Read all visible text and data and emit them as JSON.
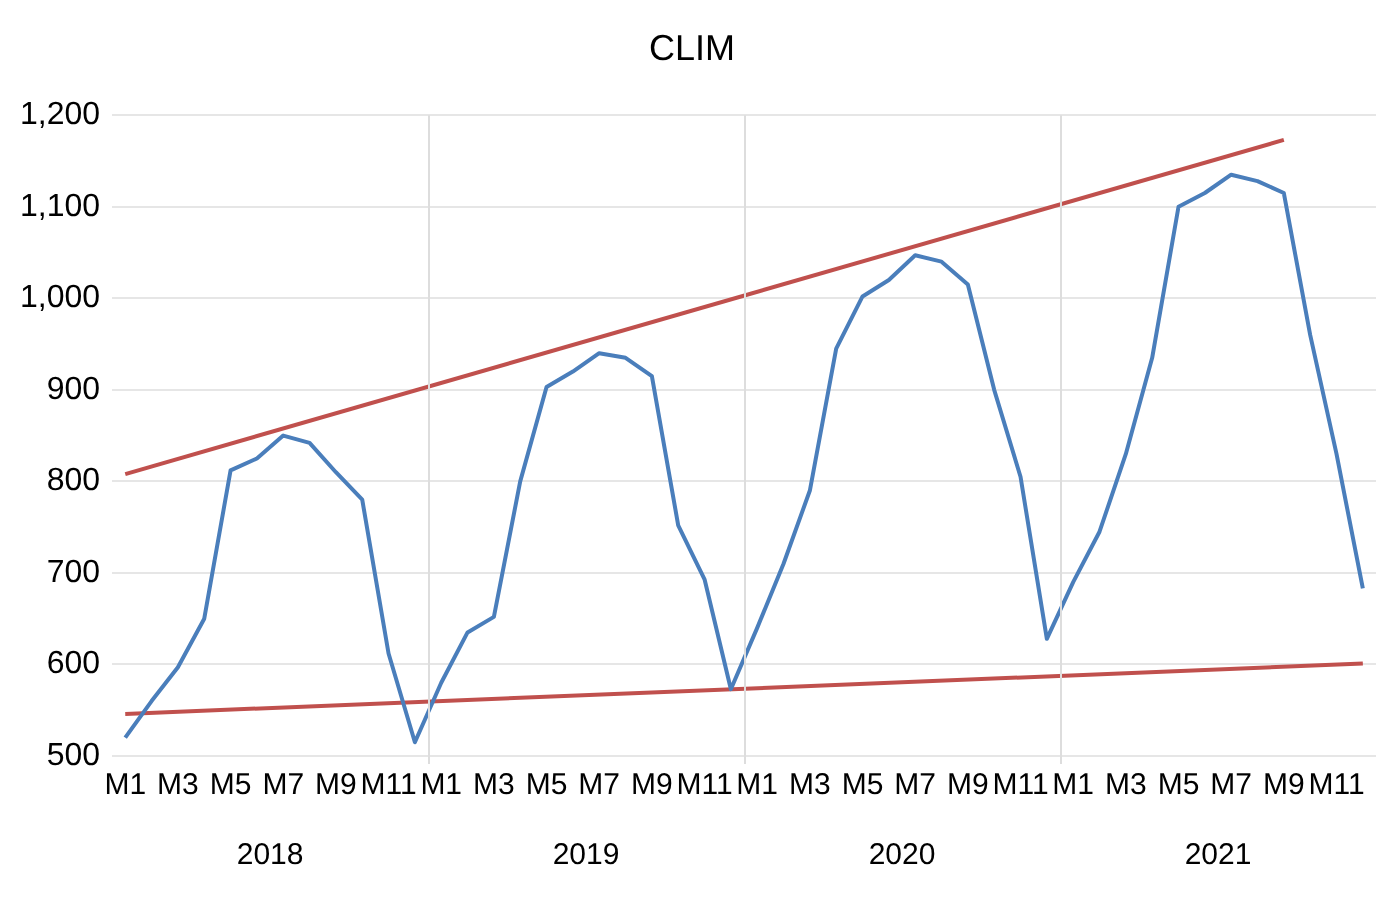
{
  "chart_data": {
    "type": "line",
    "title": "CLIM",
    "categories": [
      "M1",
      null,
      "M3",
      null,
      "M5",
      null,
      "M7",
      null,
      "M9",
      null,
      "M11",
      null,
      "M1",
      null,
      "M3",
      null,
      "M5",
      null,
      "M7",
      null,
      "M9",
      null,
      "M11",
      null,
      "M1",
      null,
      "M3",
      null,
      "M5",
      null,
      "M7",
      null,
      "M9",
      null,
      "M11",
      null,
      "M1",
      null,
      "M3",
      null,
      "M5",
      null,
      "M7",
      null,
      "M9",
      null,
      "M11",
      null
    ],
    "series": [
      {
        "color": "#4a7ebb",
        "values": [
          520,
          560,
          597,
          650,
          812,
          825,
          850,
          842,
          810,
          780,
          612,
          515,
          580,
          635,
          652,
          800,
          903,
          920,
          940,
          935,
          915,
          752,
          693,
          573,
          640,
          710,
          790,
          945,
          1002,
          1020,
          1047,
          1040,
          1015,
          900,
          805,
          628,
          690,
          745,
          830,
          935,
          1100,
          1115,
          1135,
          1128,
          1115,
          960,
          830,
          683
        ]
      },
      {
        "color": "#c0504d",
        "values": [
          808,
          null,
          null,
          null,
          null,
          null,
          null,
          null,
          null,
          null,
          null,
          null,
          null,
          null,
          null,
          null,
          null,
          null,
          null,
          null,
          null,
          null,
          null,
          null,
          null,
          null,
          null,
          null,
          null,
          null,
          null,
          null,
          null,
          null,
          null,
          null,
          null,
          null,
          null,
          null,
          null,
          null,
          null,
          null,
          1173,
          null,
          null,
          null
        ]
      },
      {
        "color": "#c0504d",
        "values": [
          546,
          null,
          null,
          null,
          null,
          null,
          null,
          null,
          null,
          null,
          null,
          null,
          null,
          null,
          null,
          null,
          null,
          null,
          null,
          null,
          null,
          null,
          null,
          null,
          null,
          null,
          null,
          null,
          null,
          null,
          null,
          null,
          null,
          null,
          null,
          null,
          null,
          null,
          null,
          null,
          null,
          null,
          null,
          null,
          null,
          null,
          null,
          601
        ]
      }
    ],
    "ylim": [
      500,
      1200
    ],
    "yticks": [
      500,
      600,
      700,
      800,
      900,
      {
        "value": 1000,
        "label": "1,000"
      },
      {
        "value": 1100,
        "label": "1,100"
      },
      {
        "value": 1200,
        "label": "1,200"
      }
    ],
    "annotations": [
      "2018",
      "2019",
      "2020",
      "2021"
    ],
    "grid": "y",
    "legend": false,
    "marker": "none",
    "line_style": "solid"
  }
}
